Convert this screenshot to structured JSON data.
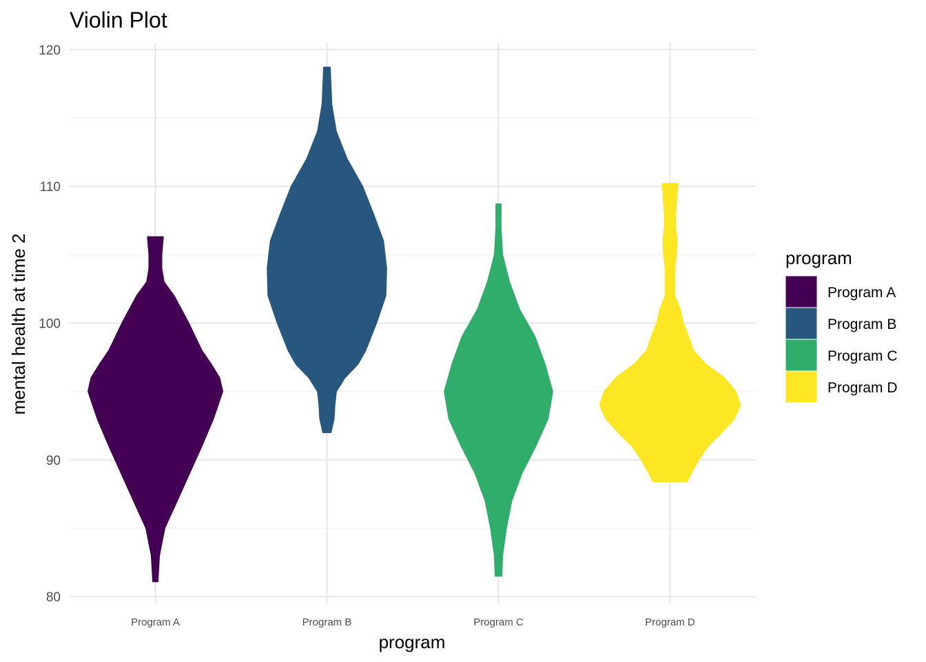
{
  "chart_data": {
    "type": "violin",
    "title": "Violin Plot",
    "xlabel": "program",
    "ylabel": "mental health at time 2",
    "ylim": [
      79.5,
      120.5
    ],
    "yticks": [
      80,
      90,
      100,
      110,
      120
    ],
    "grid": true,
    "legend": {
      "title": "program",
      "placement": "right"
    },
    "categories": [
      "Program A",
      "Program B",
      "Program C",
      "Program D"
    ],
    "series": [
      {
        "name": "Program A",
        "color": "#440154",
        "min": 81.1,
        "max": 106.3,
        "profile": [
          [
            81.1,
            0.03
          ],
          [
            83,
            0.05
          ],
          [
            85,
            0.12
          ],
          [
            87,
            0.28
          ],
          [
            89,
            0.44
          ],
          [
            91,
            0.6
          ],
          [
            93,
            0.75
          ],
          [
            95,
            0.87
          ],
          [
            96,
            0.83
          ],
          [
            97,
            0.72
          ],
          [
            98,
            0.6
          ],
          [
            100,
            0.43
          ],
          [
            102,
            0.24
          ],
          [
            103,
            0.11
          ],
          [
            104,
            0.08
          ],
          [
            105,
            0.08
          ],
          [
            106.3,
            0.1
          ]
        ]
      },
      {
        "name": "Program B",
        "color": "#27577f",
        "min": 92,
        "max": 118.7,
        "profile": [
          [
            92,
            0.05
          ],
          [
            93,
            0.09
          ],
          [
            94,
            0.1
          ],
          [
            95,
            0.12
          ],
          [
            96,
            0.23
          ],
          [
            97,
            0.4
          ],
          [
            98,
            0.5
          ],
          [
            100,
            0.64
          ],
          [
            102,
            0.76
          ],
          [
            104,
            0.77
          ],
          [
            106,
            0.73
          ],
          [
            108,
            0.6
          ],
          [
            110,
            0.46
          ],
          [
            112,
            0.26
          ],
          [
            114,
            0.12
          ],
          [
            116,
            0.06
          ],
          [
            118.7,
            0.04
          ]
        ]
      },
      {
        "name": "Program C",
        "color": "#31ad6b",
        "min": 81.5,
        "max": 108.7,
        "profile": [
          [
            81.5,
            0.04
          ],
          [
            83,
            0.05
          ],
          [
            85,
            0.1
          ],
          [
            87,
            0.17
          ],
          [
            89,
            0.3
          ],
          [
            91,
            0.48
          ],
          [
            93,
            0.64
          ],
          [
            95,
            0.7
          ],
          [
            96,
            0.65
          ],
          [
            97,
            0.6
          ],
          [
            99,
            0.47
          ],
          [
            101,
            0.27
          ],
          [
            103,
            0.14
          ],
          [
            105,
            0.05
          ],
          [
            107,
            0.03
          ],
          [
            108.7,
            0.03
          ]
        ]
      },
      {
        "name": "Program D",
        "color": "#fde725",
        "min": 88.4,
        "max": 110.2,
        "profile": [
          [
            88.4,
            0.22
          ],
          [
            89,
            0.27
          ],
          [
            90,
            0.37
          ],
          [
            91,
            0.49
          ],
          [
            92,
            0.67
          ],
          [
            93,
            0.83
          ],
          [
            94,
            0.91
          ],
          [
            95,
            0.85
          ],
          [
            96,
            0.7
          ],
          [
            97,
            0.46
          ],
          [
            98,
            0.3
          ],
          [
            99,
            0.24
          ],
          [
            100,
            0.17
          ],
          [
            101,
            0.13
          ],
          [
            102,
            0.06
          ],
          [
            104,
            0.06
          ],
          [
            105,
            0.08
          ],
          [
            106,
            0.09
          ],
          [
            107,
            0.07
          ],
          [
            108,
            0.07
          ],
          [
            110.2,
            0.1
          ]
        ]
      }
    ]
  }
}
